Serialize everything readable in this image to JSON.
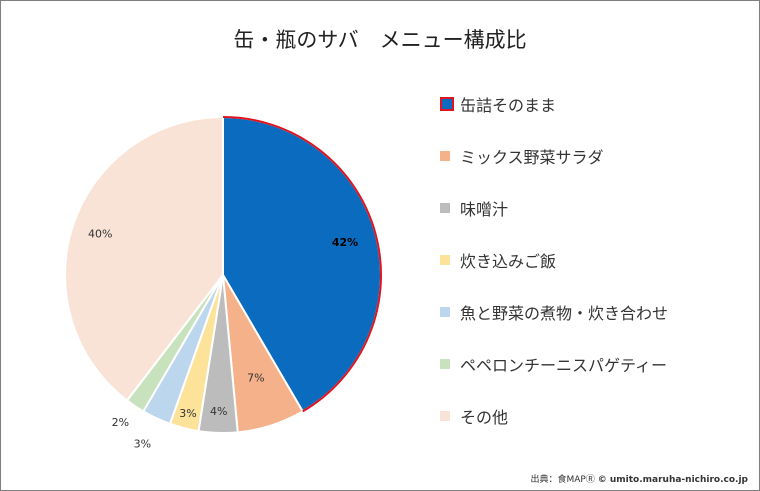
{
  "chart_data": {
    "type": "pie",
    "title": "缶・瓶のサバ　メニュー構成比",
    "categories": [
      "缶詰そのまま",
      "ミックス野菜サラダ",
      "味噌汁",
      "炊き込みご飯",
      "魚と野菜の煮物・炊き合わせ",
      "ペペロンチーニスパゲティー",
      "その他"
    ],
    "values": [
      42,
      7,
      4,
      3,
      3,
      2,
      40
    ],
    "data_labels": [
      "42%",
      "7%",
      "4%",
      "3%",
      "3%",
      "2%",
      "40%"
    ],
    "colors": [
      "#0b6bbf",
      "#f4b18a",
      "#bcbcbc",
      "#fde39a",
      "#bcd6ee",
      "#c7e2bd",
      "#f9e3d6"
    ],
    "highlight": {
      "index": 0,
      "border_color": "#e0141e"
    },
    "legend_position": "right"
  },
  "source": {
    "prefix": "出典：食MAP",
    "mark": "Ⓡ",
    "site": "© umito.maruha-nichiro.co.jp"
  }
}
